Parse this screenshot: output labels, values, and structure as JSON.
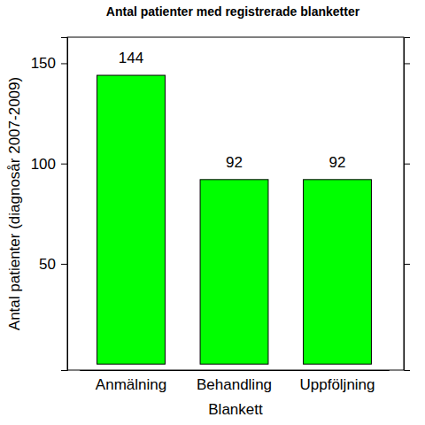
{
  "chart_data": {
    "type": "bar",
    "title": "Antal patienter med registrerade blanketter",
    "x_label": "Blankett",
    "y_label": "Antal patienter (diagnosår 2007-2009)",
    "categories": [
      "Anmälning",
      "Behandling",
      "Uppföljning"
    ],
    "values": [
      144,
      92,
      92
    ],
    "color": "#00ff00",
    "ylim": [
      -3,
      163
    ],
    "yticks": [
      50,
      100,
      150
    ],
    "grid": false,
    "data_labels": true
  }
}
